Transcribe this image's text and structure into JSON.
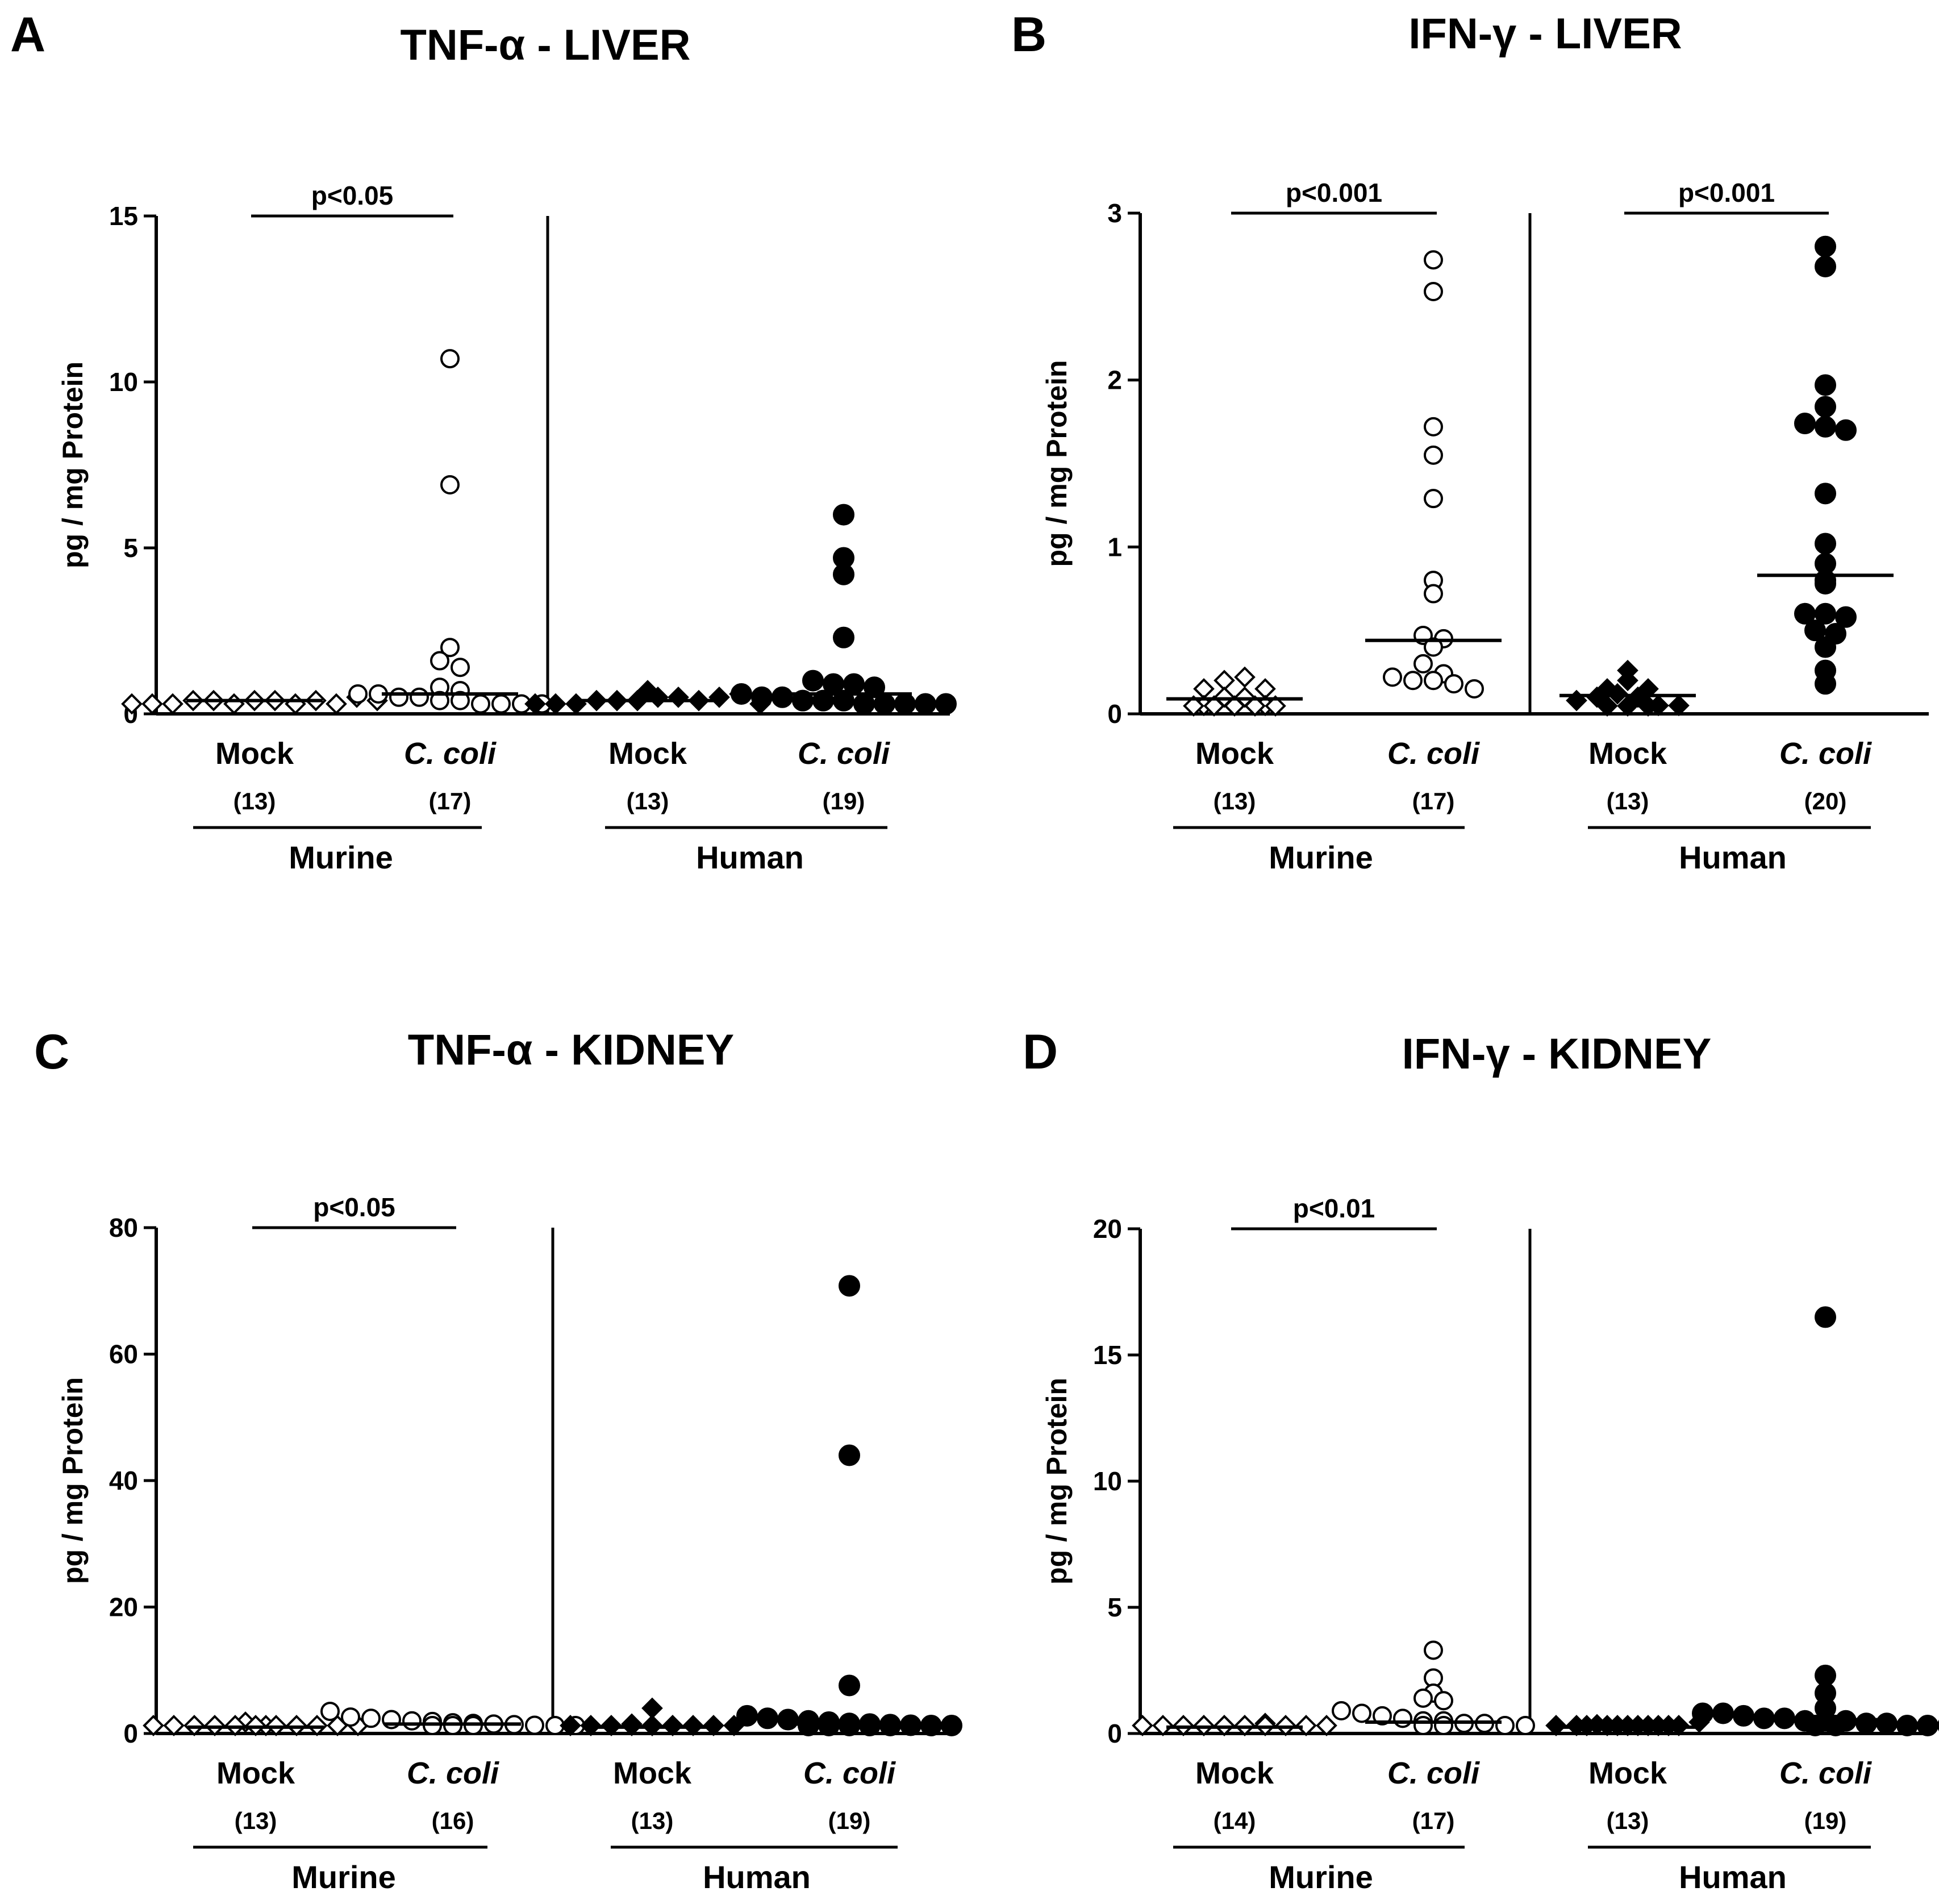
{
  "chart_data": [
    {
      "type": "scatter",
      "panel": "A",
      "title": "TNF-α - LIVER",
      "ylabel": "pg / mg Protein",
      "ylim": [
        0,
        15
      ],
      "yticks": [
        "0",
        "5",
        "10",
        "15"
      ],
      "groups": [
        {
          "label": "Mock",
          "italic": false,
          "n": "(13)",
          "marker": "open-diamond",
          "median": 0.4,
          "values": [
            0.3,
            0.3,
            0.3,
            0.4,
            0.4,
            0.3,
            0.4,
            0.4,
            0.3,
            0.4,
            0.3,
            0.5,
            0.4
          ]
        },
        {
          "label": "C. coli",
          "italic": true,
          "n": "(17)",
          "marker": "open-circle",
          "median": 0.6,
          "values": [
            10.7,
            6.9,
            2.0,
            1.6,
            1.4,
            0.8,
            0.7,
            0.6,
            0.6,
            0.5,
            0.5,
            0.4,
            0.4,
            0.3,
            0.3,
            0.3,
            0.3
          ]
        },
        {
          "label": "Mock",
          "italic": false,
          "n": "(13)",
          "marker": "filled-diamond",
          "median": 0.4,
          "values": [
            0.3,
            0.3,
            0.3,
            0.4,
            0.4,
            0.4,
            0.5,
            0.5,
            0.4,
            0.5,
            0.6,
            0.7,
            0.3
          ]
        },
        {
          "label": "C. coli",
          "italic": true,
          "n": "(19)",
          "marker": "filled-circle",
          "median": 0.6,
          "values": [
            6.0,
            4.7,
            4.2,
            2.3,
            1.0,
            0.9,
            0.9,
            0.8,
            0.6,
            0.5,
            0.5,
            0.4,
            0.4,
            0.4,
            0.3,
            0.3,
            0.3,
            0.3,
            0.3
          ]
        }
      ],
      "hosts": [
        "Murine",
        "Human"
      ],
      "pvalues": [
        {
          "text": "p<0.05",
          "from": 0,
          "to": 1
        }
      ]
    },
    {
      "type": "scatter",
      "panel": "B",
      "title": "IFN-γ - LIVER",
      "ylabel": "pg / mg Protein",
      "ylim": [
        0,
        3
      ],
      "yticks": [
        "0",
        "1",
        "2",
        "3"
      ],
      "groups": [
        {
          "label": "Mock",
          "italic": false,
          "n": "(13)",
          "marker": "open-diamond",
          "median": 0.09,
          "values": [
            0.0,
            0.0,
            0.0,
            0.05,
            0.1,
            0.15,
            0.2,
            0.22,
            0.15,
            0.1,
            0.05,
            0.0,
            0.0
          ]
        },
        {
          "label": "C. coli",
          "italic": true,
          "n": "(17)",
          "marker": "open-circle",
          "median": 0.44,
          "values": [
            2.72,
            2.53,
            1.72,
            1.55,
            1.29,
            0.8,
            0.72,
            0.47,
            0.45,
            0.4,
            0.3,
            0.24,
            0.22,
            0.2,
            0.2,
            0.18,
            0.15
          ]
        },
        {
          "label": "Mock",
          "italic": false,
          "n": "(13)",
          "marker": "filled-diamond",
          "median": 0.11,
          "values": [
            0.08,
            0.1,
            0.15,
            0.2,
            0.15,
            0.12,
            0.1,
            0.05,
            0.0,
            0.0,
            0.05,
            0.26,
            0.0
          ]
        },
        {
          "label": "C. coli",
          "italic": true,
          "n": "(20)",
          "marker": "filled-circle",
          "median": 0.83,
          "values": [
            2.8,
            2.68,
            1.97,
            1.84,
            1.74,
            1.72,
            1.7,
            1.32,
            1.02,
            0.9,
            0.8,
            0.78,
            0.6,
            0.6,
            0.58,
            0.5,
            0.48,
            0.4,
            0.26,
            0.18
          ]
        }
      ],
      "hosts": [
        "Murine",
        "Human"
      ],
      "pvalues": [
        {
          "text": "p<0.001",
          "from": 0,
          "to": 1
        },
        {
          "text": "p<0.001",
          "from": 2,
          "to": 3
        }
      ]
    },
    {
      "type": "scatter",
      "panel": "C",
      "title": "TNF-α - KIDNEY",
      "ylabel": "pg / mg Protein",
      "ylim": [
        0,
        80
      ],
      "yticks": [
        "0",
        "20",
        "40",
        "60",
        "80"
      ],
      "groups": [
        {
          "label": "Mock",
          "italic": false,
          "n": "(13)",
          "marker": "open-diamond",
          "median": 1.0,
          "values": [
            1.0,
            1.0,
            1.0,
            1.0,
            1.0,
            1.0,
            1.0,
            1.0,
            1.0,
            1.0,
            1.8,
            1.2,
            0.8
          ]
        },
        {
          "label": "C. coli",
          "italic": true,
          "n": "(16)",
          "marker": "open-circle",
          "median": 1.5,
          "values": [
            3.5,
            2.6,
            2.4,
            2.2,
            2.0,
            1.9,
            1.7,
            1.6,
            1.5,
            1.4,
            1.3,
            1.2,
            1.1,
            1.0,
            0.9,
            0.8
          ]
        },
        {
          "label": "Mock",
          "italic": false,
          "n": "(13)",
          "marker": "filled-diamond",
          "median": 1.0,
          "values": [
            1.0,
            1.0,
            1.0,
            1.0,
            1.5,
            1.2,
            1.0,
            1.0,
            1.0,
            1.2,
            1.0,
            4.0,
            0.9
          ]
        },
        {
          "label": "C. coli",
          "italic": true,
          "n": "(19)",
          "marker": "filled-circle",
          "median": 1.5,
          "values": [
            70.8,
            44.0,
            7.6,
            2.8,
            2.4,
            2.2,
            2.0,
            1.8,
            1.6,
            1.5,
            1.4,
            1.3,
            1.2,
            1.1,
            1.0,
            1.0,
            0.9,
            0.9,
            0.8
          ]
        }
      ],
      "hosts": [
        "Murine",
        "Human"
      ],
      "pvalues": [
        {
          "text": "p<0.05",
          "from": 0,
          "to": 1
        }
      ]
    },
    {
      "type": "scatter",
      "panel": "D",
      "title": "IFN-γ - KIDNEY",
      "ylabel": "pg / mg Protein",
      "ylim": [
        0,
        20
      ],
      "yticks": [
        "0",
        "5",
        "10",
        "15",
        "20"
      ],
      "groups": [
        {
          "label": "Mock",
          "italic": false,
          "n": "(14)",
          "marker": "open-diamond",
          "median": 0.25,
          "values": [
            0.2,
            0.2,
            0.25,
            0.2,
            0.25,
            0.3,
            0.25,
            0.3,
            0.25,
            0.2,
            0.3,
            0.4,
            0.2,
            0.1
          ]
        },
        {
          "label": "C. coli",
          "italic": true,
          "n": "(17)",
          "marker": "open-circle",
          "median": 0.45,
          "values": [
            3.3,
            2.2,
            1.6,
            1.4,
            1.3,
            0.9,
            0.8,
            0.7,
            0.6,
            0.5,
            0.5,
            0.4,
            0.4,
            0.3,
            0.3,
            0.2,
            0.1
          ]
        },
        {
          "label": "Mock",
          "italic": false,
          "n": "(13)",
          "marker": "filled-diamond",
          "median": 0.25,
          "values": [
            0.2,
            0.3,
            0.25,
            0.3,
            0.35,
            0.3,
            0.25,
            0.3,
            0.3,
            0.25,
            0.3,
            0.45,
            0.2
          ]
        },
        {
          "label": "C. coli",
          "italic": true,
          "n": "(19)",
          "marker": "filled-circle",
          "median": 0.55,
          "values": [
            16.5,
            2.3,
            1.6,
            1.0,
            0.8,
            0.8,
            0.7,
            0.6,
            0.6,
            0.5,
            0.5,
            0.5,
            0.4,
            0.4,
            0.3,
            0.3,
            0.3,
            0.2,
            0.1
          ]
        }
      ],
      "hosts": [
        "Murine",
        "Human"
      ],
      "pvalues": [
        {
          "text": "p<0.01",
          "from": 0,
          "to": 1
        }
      ]
    }
  ]
}
